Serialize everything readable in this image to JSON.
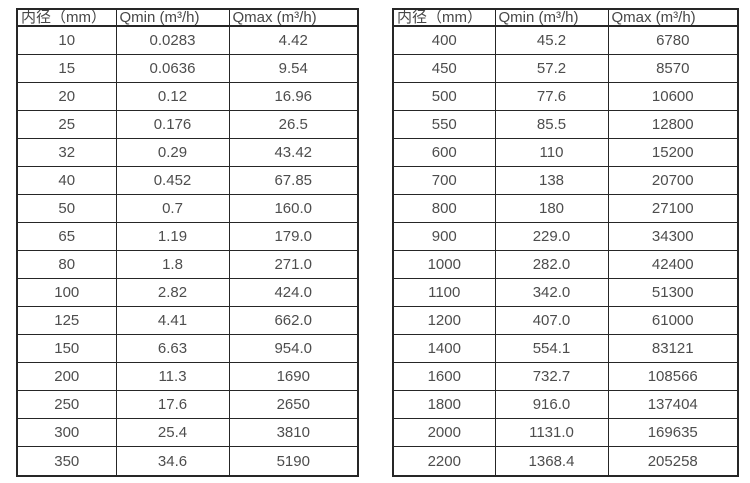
{
  "page": {
    "background_color": "#ffffff",
    "border_color": "#262626",
    "text_color": "#4d4d4d"
  },
  "tables": [
    {
      "name": "small-diameter-flow-table",
      "headers": [
        "内径（mm）",
        "Qmin (m³/h)",
        "Qmax (m³/h)"
      ],
      "rows": [
        [
          "10",
          "0.0283",
          "4.42"
        ],
        [
          "15",
          "0.0636",
          "9.54"
        ],
        [
          "20",
          "0.12",
          "16.96"
        ],
        [
          "25",
          "0.176",
          "26.5"
        ],
        [
          "32",
          "0.29",
          "43.42"
        ],
        [
          "40",
          "0.452",
          "67.85"
        ],
        [
          "50",
          "0.7",
          "160.0"
        ],
        [
          "65",
          "1.19",
          "179.0"
        ],
        [
          "80",
          "1.8",
          "271.0"
        ],
        [
          "100",
          "2.82",
          "424.0"
        ],
        [
          "125",
          "4.41",
          "662.0"
        ],
        [
          "150",
          "6.63",
          "954.0"
        ],
        [
          "200",
          "11.3",
          "1690"
        ],
        [
          "250",
          "17.6",
          "2650"
        ],
        [
          "300",
          "25.4",
          "3810"
        ],
        [
          "350",
          "34.6",
          "5190"
        ]
      ]
    },
    {
      "name": "large-diameter-flow-table",
      "headers": [
        "内径（mm）",
        "Qmin (m³/h)",
        "Qmax (m³/h)"
      ],
      "rows": [
        [
          "400",
          "45.2",
          "6780"
        ],
        [
          "450",
          "57.2",
          "8570"
        ],
        [
          "500",
          "77.6",
          "10600"
        ],
        [
          "550",
          "85.5",
          "12800"
        ],
        [
          "600",
          "110",
          "15200"
        ],
        [
          "700",
          "138",
          "20700"
        ],
        [
          "800",
          "180",
          "27100"
        ],
        [
          "900",
          "229.0",
          "34300"
        ],
        [
          "1000",
          "282.0",
          "42400"
        ],
        [
          "1100",
          "342.0",
          "51300"
        ],
        [
          "1200",
          "407.0",
          "61000"
        ],
        [
          "1400",
          "554.1",
          "83121"
        ],
        [
          "1600",
          "732.7",
          "108566"
        ],
        [
          "1800",
          "916.0",
          "137404"
        ],
        [
          "2000",
          "1131.0",
          "169635"
        ],
        [
          "2200",
          "1368.4",
          "205258"
        ]
      ]
    }
  ]
}
